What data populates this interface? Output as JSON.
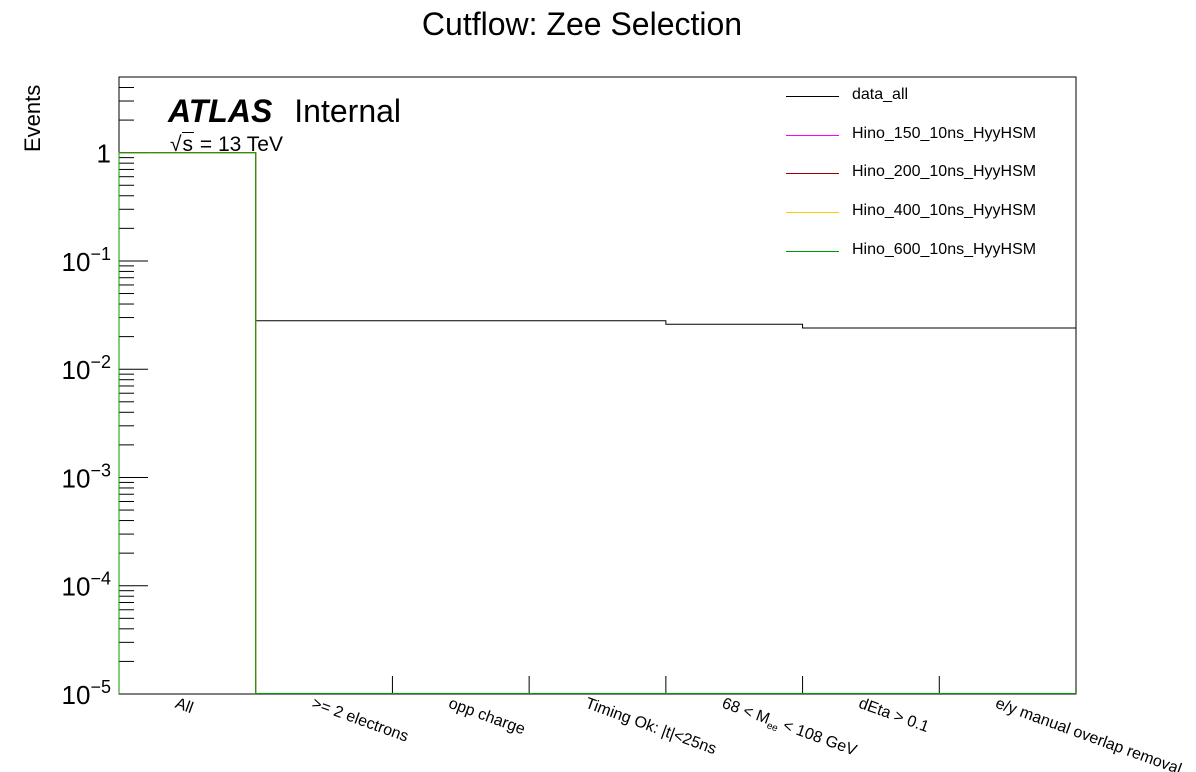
{
  "chart_data": {
    "type": "step-histogram",
    "title": "Cutflow: Zee Selection",
    "ylabel": "Events",
    "xlabel": "",
    "ylog": true,
    "ylim": [
      1e-05,
      5
    ],
    "y_ticks": [
      {
        "value": 1,
        "label": "1",
        "base": "",
        "exp": ""
      },
      {
        "value": 0.1,
        "label": "",
        "base": "10",
        "exp": "−1"
      },
      {
        "value": 0.01,
        "label": "",
        "base": "10",
        "exp": "−2"
      },
      {
        "value": 0.001,
        "label": "",
        "base": "10",
        "exp": "−3"
      },
      {
        "value": 0.0001,
        "label": "",
        "base": "10",
        "exp": "−4"
      },
      {
        "value": 1e-05,
        "label": "",
        "base": "10",
        "exp": "−5"
      }
    ],
    "categories": [
      {
        "main": "All",
        "sub": "",
        "rest": ""
      },
      {
        "main": ">= 2 electrons",
        "sub": "",
        "rest": ""
      },
      {
        "main": "opp charge",
        "sub": "",
        "rest": ""
      },
      {
        "main": "Timing Ok: |t|<25ns",
        "sub": "",
        "rest": ""
      },
      {
        "main": "68 < M",
        "sub": "ee",
        "rest": " < 108 GeV"
      },
      {
        "main": "dEta > 0.1",
        "sub": "",
        "rest": ""
      },
      {
        "main": "e/y manual overlap removal",
        "sub": "",
        "rest": ""
      }
    ],
    "series": [
      {
        "name": "data_all",
        "color": "#000000",
        "values": [
          1,
          0.028,
          0.028,
          0.028,
          0.026,
          0.024,
          0.024
        ]
      },
      {
        "name": "Hino_150_10ns_HyyHSM",
        "color": "#ff00ff",
        "values": [
          1,
          1e-05,
          1e-05,
          1e-05,
          1e-05,
          1e-05,
          1e-05
        ]
      },
      {
        "name": "Hino_200_10ns_HyyHSM",
        "color": "#990000",
        "values": [
          1,
          1e-05,
          1e-05,
          1e-05,
          1e-05,
          1e-05,
          1e-05
        ]
      },
      {
        "name": "Hino_400_10ns_HyyHSM",
        "color": "#ffcc00",
        "values": [
          1,
          1e-05,
          1e-05,
          1e-05,
          1e-05,
          1e-05,
          1e-05
        ]
      },
      {
        "name": "Hino_600_10ns_HyyHSM",
        "color": "#009900",
        "values": [
          1,
          1e-05,
          1e-05,
          1e-05,
          1e-05,
          1e-05,
          1e-05
        ]
      }
    ],
    "legend_position": "top-right",
    "grid": false
  },
  "annotations": {
    "experiment": "ATLAS",
    "status": "Internal",
    "energy_root": "s",
    "energy_rest": " = 13 TeV"
  }
}
